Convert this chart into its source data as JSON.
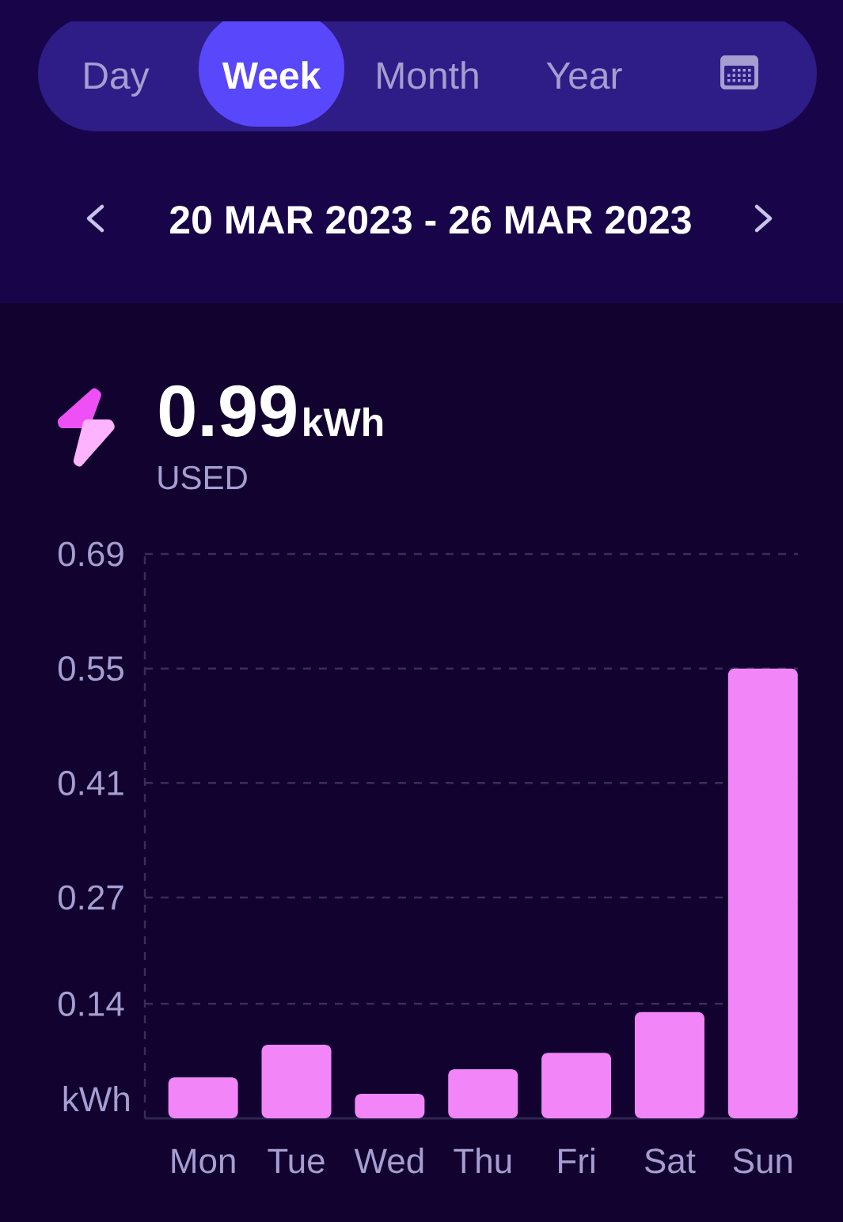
{
  "chart_data": {
    "type": "bar",
    "title": "20 MAR 2023 - 26 MAR 2023",
    "annotations": [
      "Day",
      "Week",
      "Month",
      "Year",
      "0.99",
      "kWh",
      "USED"
    ],
    "categories": [
      "Mon",
      "Tue",
      "Wed",
      "Thu",
      "Fri",
      "Sat",
      "Sun"
    ],
    "values": [
      0.05,
      0.09,
      0.03,
      0.06,
      0.08,
      0.13,
      0.55
    ],
    "color": "#f285f8",
    "ylabel": "kWh",
    "ylim": [
      0,
      0.69
    ],
    "yticks": [
      0.14,
      0.27,
      0.41,
      0.55,
      0.69
    ],
    "grid": "y"
  }
}
